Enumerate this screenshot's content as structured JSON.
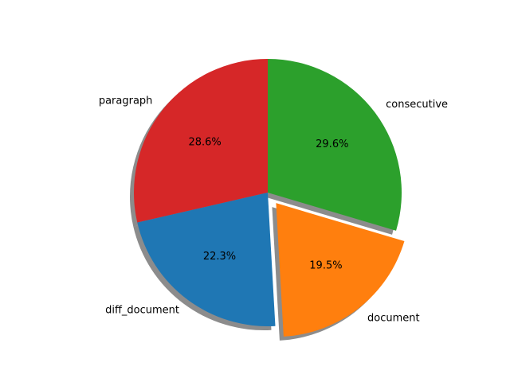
{
  "chart_data": {
    "type": "pie",
    "title": "",
    "slices": [
      {
        "label": "paragraph",
        "value": 28.6,
        "pct_label": "28.6%",
        "color": "#d62728",
        "explode": false
      },
      {
        "label": "diff_document",
        "value": 22.3,
        "pct_label": "22.3%",
        "color": "#1f77b4",
        "explode": false
      },
      {
        "label": "document",
        "value": 19.5,
        "pct_label": "19.5%",
        "color": "#ff7f0e",
        "explode": true
      },
      {
        "label": "consecutive",
        "value": 29.6,
        "pct_label": "29.6%",
        "color": "#2ca02c",
        "explode": false
      }
    ],
    "start_angle_deg": 90,
    "direction": "counterclockwise",
    "shadow": true,
    "legend": "none",
    "grid": false
  }
}
